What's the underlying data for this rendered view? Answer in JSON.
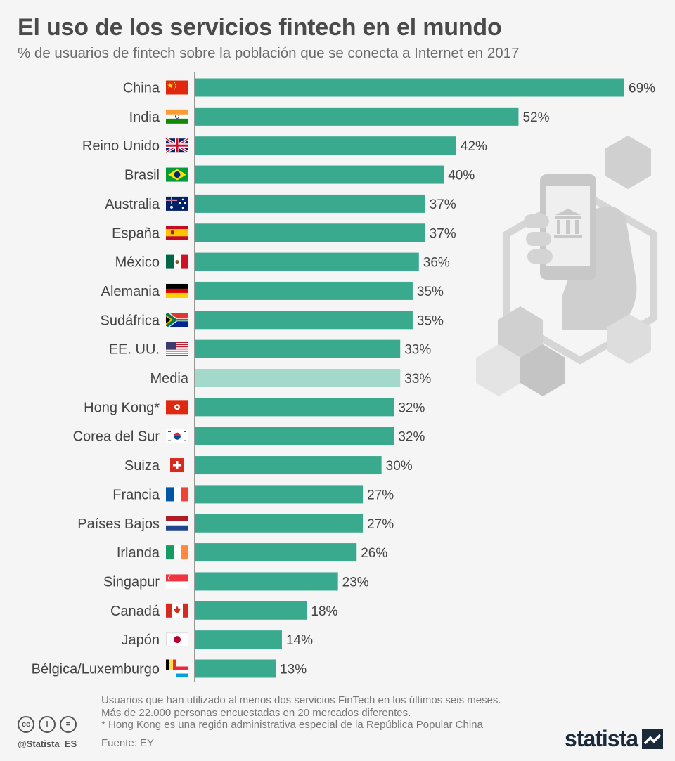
{
  "title": "El uso de los servicios fintech en el mundo",
  "subtitle": "% de usuarios de fintech sobre la población que se conecta a Internet en 2017",
  "chart_data": {
    "type": "bar",
    "orientation": "horizontal",
    "categories": [
      "China",
      "India",
      "Reino Unido",
      "Brasil",
      "Australia",
      "España",
      "México",
      "Alemania",
      "Sudáfrica",
      "EE. UU.",
      "Media",
      "Hong Kong*",
      "Corea del Sur",
      "Suiza",
      "Francia",
      "Países Bajos",
      "Irlanda",
      "Singapur",
      "Canadá",
      "Japón",
      "Bélgica/Luxemburgo"
    ],
    "values": [
      69,
      52,
      42,
      40,
      37,
      37,
      36,
      35,
      35,
      33,
      33,
      32,
      32,
      30,
      27,
      27,
      26,
      23,
      18,
      14,
      13
    ],
    "value_labels": [
      "69%",
      "52%",
      "42%",
      "40%",
      "37%",
      "37%",
      "36%",
      "35%",
      "35%",
      "33%",
      "33%",
      "32%",
      "32%",
      "30%",
      "27%",
      "27%",
      "26%",
      "23%",
      "18%",
      "14%",
      "13%"
    ],
    "highlight_category": "Media",
    "bar_color": "#3aaa8f",
    "highlight_color": "#a3d9cb",
    "flags": [
      "china-flag",
      "india-flag",
      "uk-flag",
      "brazil-flag",
      "australia-flag",
      "spain-flag",
      "mexico-flag",
      "germany-flag",
      "south-africa-flag",
      "usa-flag",
      null,
      "hong-kong-flag",
      "south-korea-flag",
      "switzerland-flag",
      "france-flag",
      "netherlands-flag",
      "ireland-flag",
      "singapore-flag",
      "canada-flag",
      "japan-flag",
      "belgium-luxembourg-flag"
    ],
    "xlim": [
      0,
      69
    ],
    "grid": false,
    "legend": false
  },
  "notes": [
    "Usuarios que han utilizado al menos dos servicios FinTech en los últimos seis meses.",
    "Más de 22.000 personas encuestadas en 20 mercados diferentes.",
    "* Hong Kong es una región administrativa especial de la República Popular China"
  ],
  "source": "Fuente: EY",
  "social_handle": "@Statista_ES",
  "brand": "statista",
  "license_icons": [
    "cc-icon",
    "by-icon",
    "nd-icon"
  ],
  "license_glyphs": [
    "cc",
    "i",
    "="
  ],
  "illustration": "hand-phone-bank-icon"
}
